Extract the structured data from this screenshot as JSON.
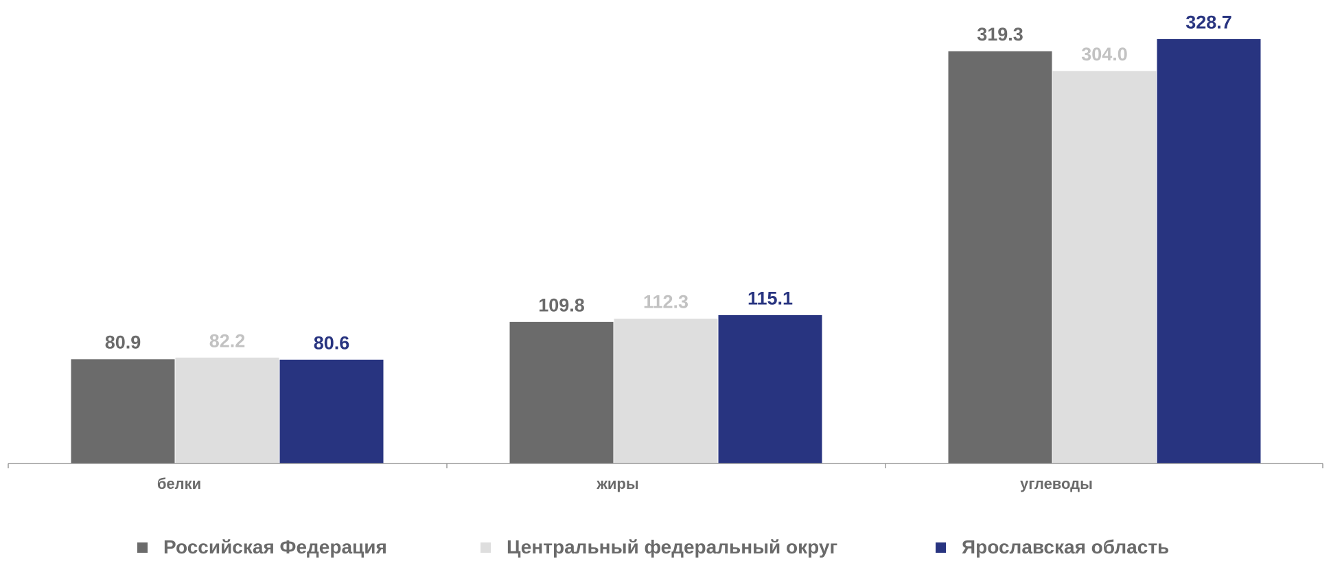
{
  "chart_data": {
    "type": "bar",
    "categories": [
      "белки",
      "жиры",
      "углеводы"
    ],
    "series": [
      {
        "name": "Российская Федерация",
        "values": [
          80.9,
          109.8,
          319.3
        ],
        "color": "#6b6b6b",
        "label_color": "#6b6b6b"
      },
      {
        "name": "Центральный федеральный округ",
        "values": [
          82.2,
          112.3,
          304.0
        ],
        "color": "#dedede",
        "label_color": "#c2c2c2"
      },
      {
        "name": "Ярославская область",
        "values": [
          80.6,
          115.1,
          328.7
        ],
        "color": "#283480",
        "label_color": "#283480"
      }
    ],
    "ylim": [
      0,
      355
    ],
    "grid": false,
    "legend_position": "bottom",
    "axis_color": "#9a9a9a",
    "tick_label_color": "#6a6a6a"
  }
}
